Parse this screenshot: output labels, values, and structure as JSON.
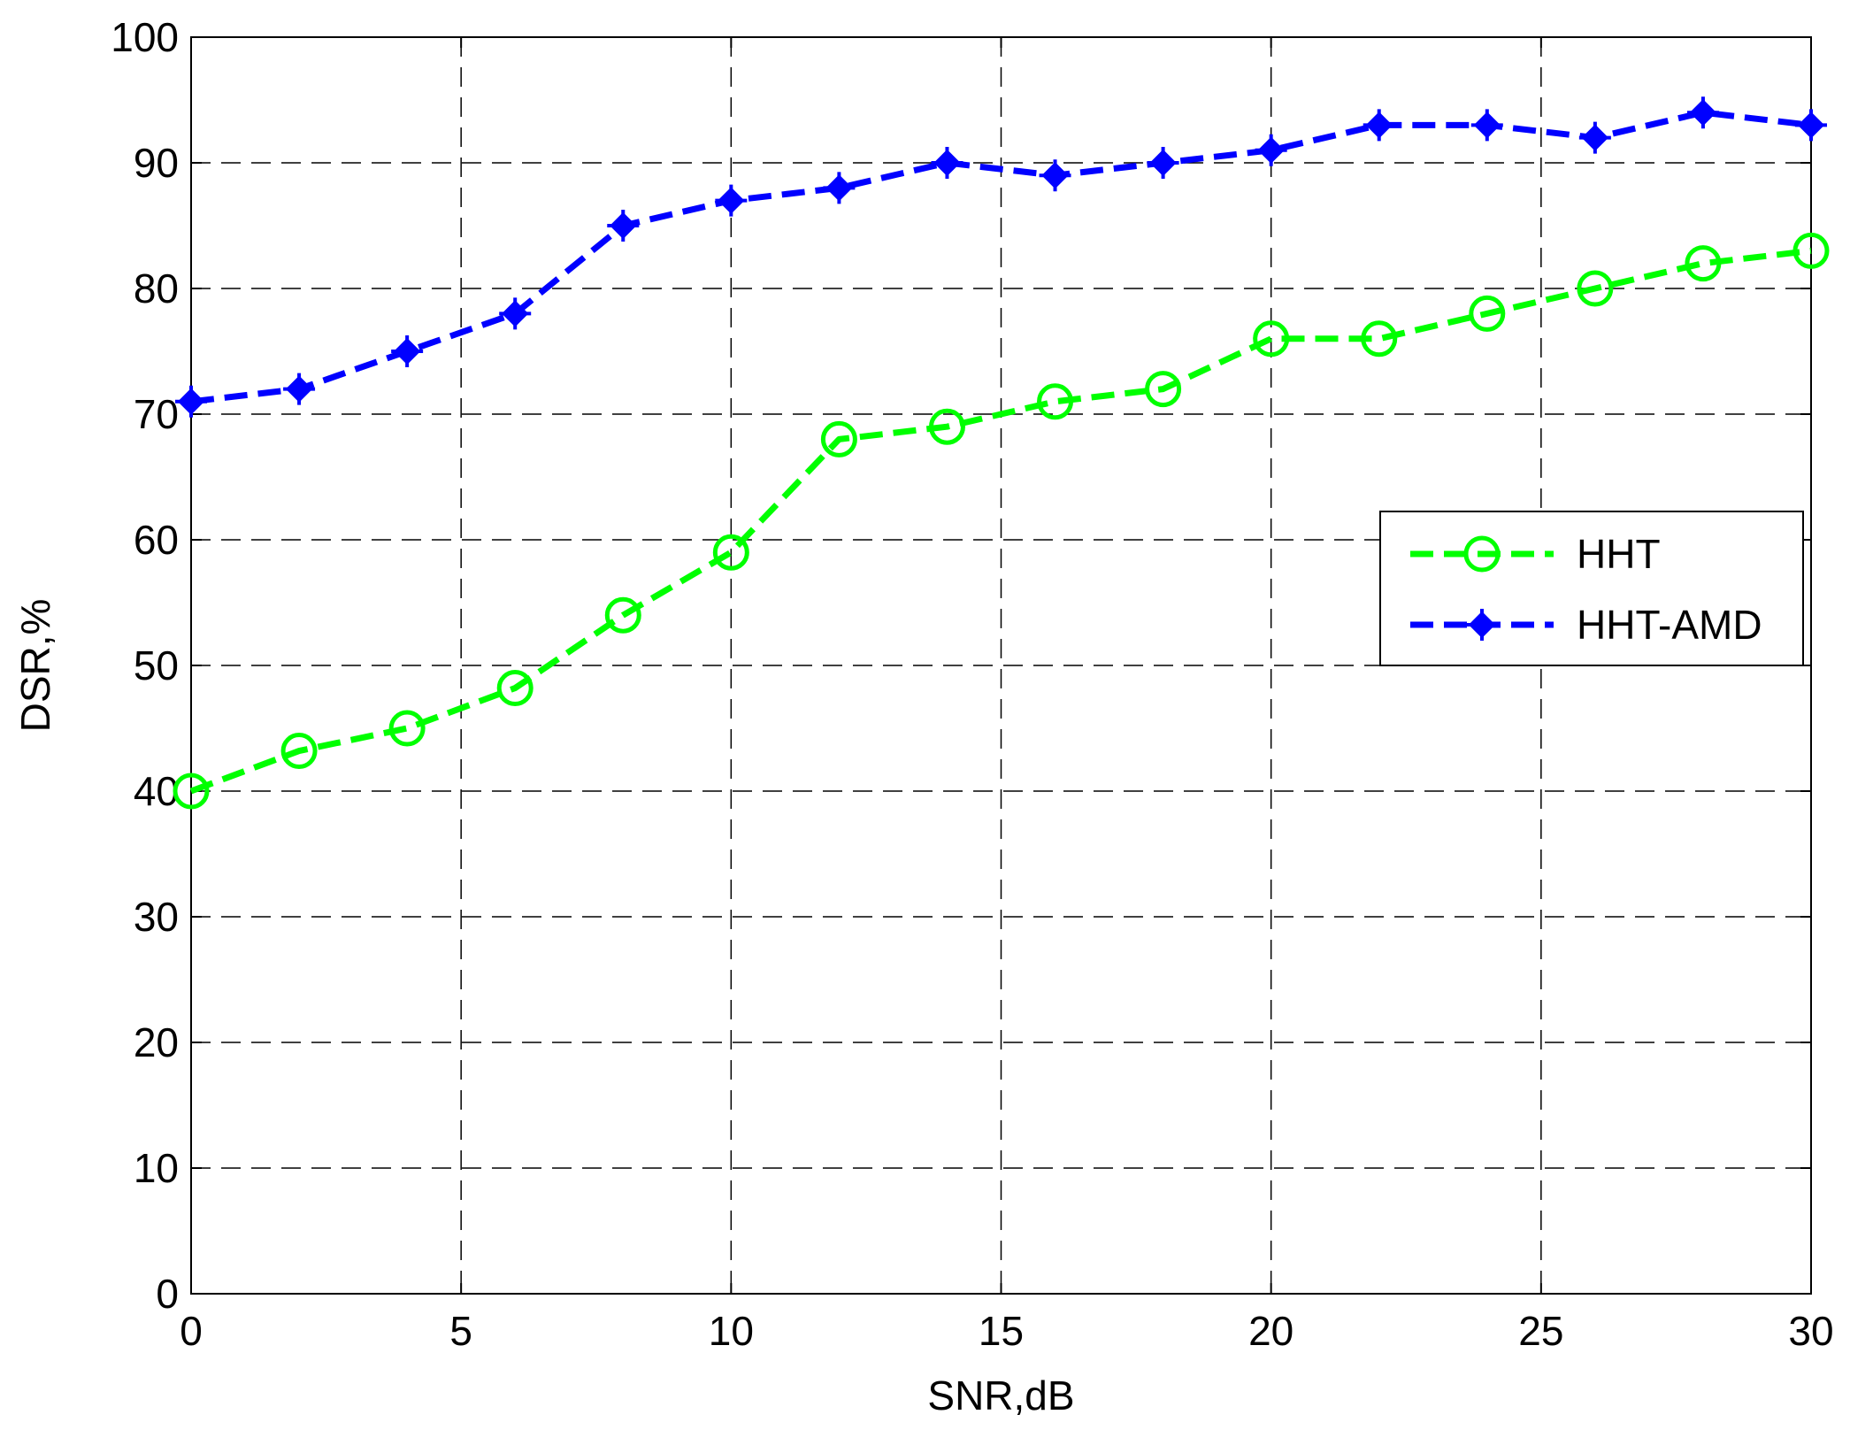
{
  "chart_data": {
    "type": "line",
    "title": "",
    "xlabel": "SNR,dB",
    "ylabel": "DSR,%",
    "xlim": [
      0,
      30
    ],
    "ylim": [
      0,
      100
    ],
    "xticks": [
      0,
      5,
      10,
      15,
      20,
      25,
      30
    ],
    "yticks": [
      0,
      10,
      20,
      30,
      40,
      50,
      60,
      70,
      80,
      90,
      100
    ],
    "grid": true,
    "legend_position": "right",
    "series": [
      {
        "name": "HHT",
        "color": "#00ff00",
        "marker": "circle",
        "line_style": "dashed",
        "x": [
          0,
          2,
          4,
          6,
          8,
          10,
          12,
          14,
          16,
          18,
          20,
          22,
          24,
          26,
          28,
          30
        ],
        "y": [
          40,
          43.2,
          45,
          48.2,
          54,
          59,
          68,
          69,
          71,
          72,
          76,
          76,
          78,
          80,
          82,
          83
        ]
      },
      {
        "name": "HHT-AMD",
        "color": "#0000ff",
        "marker": "diamond",
        "line_style": "dashed",
        "x": [
          0,
          2,
          4,
          6,
          8,
          10,
          12,
          14,
          16,
          18,
          20,
          22,
          24,
          26,
          28,
          30
        ],
        "y": [
          71,
          72,
          75,
          78,
          85,
          87,
          88,
          90,
          89,
          90,
          91,
          93,
          93,
          92,
          94,
          93
        ]
      }
    ]
  }
}
